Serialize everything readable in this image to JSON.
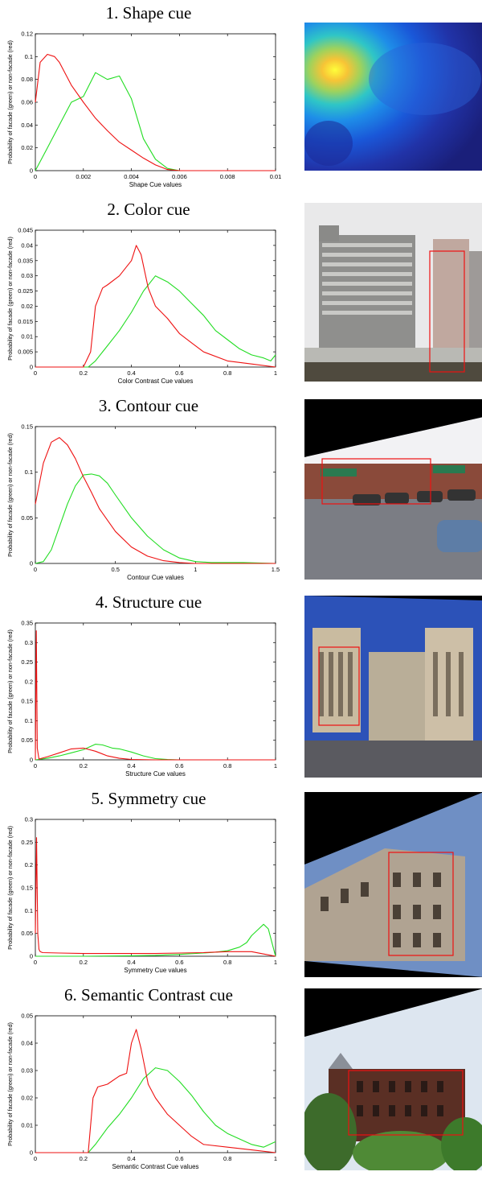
{
  "colors": {
    "facade": "#22dd22",
    "non_facade": "#ee1111"
  },
  "panels": [
    {
      "title": "1. Shape cue"
    },
    {
      "title": "2. Color cue"
    },
    {
      "title": "3. Contour cue"
    },
    {
      "title": "4. Structure cue"
    },
    {
      "title": "5. Symmetry cue"
    },
    {
      "title": "6. Semantic Contrast cue"
    }
  ],
  "thumbnails": [
    {
      "kind": "heatmap",
      "colormap": "jet"
    },
    {
      "kind": "photo",
      "scene": "building-with-box"
    },
    {
      "kind": "photo",
      "scene": "building-with-box"
    },
    {
      "kind": "photo",
      "scene": "building-with-box"
    },
    {
      "kind": "photo",
      "scene": "building-with-box"
    },
    {
      "kind": "photo",
      "scene": "building-with-box"
    }
  ],
  "chart_data": [
    {
      "type": "line",
      "xlabel": "Shape Cue values",
      "ylabel": "Probability of facade (green) or non-facade (red)",
      "xlim": [
        0,
        0.01
      ],
      "ylim": [
        0,
        0.12
      ],
      "xticks": [
        0,
        0.002,
        0.004,
        0.006,
        0.008,
        0.01
      ],
      "xtick_labels": [
        "0",
        "0.002",
        "0.004",
        "0.006",
        "0.008",
        "0.01"
      ],
      "yticks": [
        0,
        0.02,
        0.04,
        0.06,
        0.08,
        0.1,
        0.12
      ],
      "ytick_labels": [
        "0",
        "0.02",
        "0.04",
        "0.06",
        "0.08",
        "0.1",
        "0.12"
      ],
      "series": [
        {
          "color": "#22dd22",
          "x": [
            0,
            0.0005,
            0.001,
            0.0015,
            0.002,
            0.0025,
            0.003,
            0.0035,
            0.004,
            0.0045,
            0.005,
            0.0055,
            0.006,
            0.007,
            0.008,
            0.009,
            0.01
          ],
          "y": [
            0,
            0.02,
            0.04,
            0.06,
            0.065,
            0.086,
            0.08,
            0.083,
            0.063,
            0.028,
            0.01,
            0.002,
            0,
            0,
            0,
            0,
            0
          ]
        },
        {
          "color": "#ee1111",
          "x": [
            0,
            0.0002,
            0.0005,
            0.0008,
            0.001,
            0.0015,
            0.002,
            0.0025,
            0.003,
            0.0035,
            0.004,
            0.0045,
            0.005,
            0.0055,
            0.006,
            0.007,
            0.008,
            0.01
          ],
          "y": [
            0.06,
            0.095,
            0.102,
            0.1,
            0.095,
            0.075,
            0.06,
            0.046,
            0.035,
            0.025,
            0.018,
            0.011,
            0.005,
            0.001,
            0,
            0,
            0,
            0
          ]
        }
      ]
    },
    {
      "type": "line",
      "xlabel": "Color Contrast Cue values",
      "ylabel": "Probability of facade (green) or non-facade (red)",
      "xlim": [
        0,
        1
      ],
      "ylim": [
        0,
        0.045
      ],
      "xticks": [
        0,
        0.2,
        0.4,
        0.6,
        0.8,
        1
      ],
      "xtick_labels": [
        "0",
        "0.2",
        "0.4",
        "0.6",
        "0.8",
        "1"
      ],
      "yticks": [
        0,
        0.005,
        0.01,
        0.015,
        0.02,
        0.025,
        0.03,
        0.035,
        0.04,
        0.045
      ],
      "ytick_labels": [
        "0",
        "0.005",
        "0.01",
        "0.015",
        "0.02",
        "0.025",
        "0.03",
        "0.035",
        "0.04",
        "0.045"
      ],
      "series": [
        {
          "color": "#22dd22",
          "x": [
            0,
            0.22,
            0.25,
            0.3,
            0.35,
            0.4,
            0.45,
            0.5,
            0.55,
            0.6,
            0.65,
            0.7,
            0.75,
            0.8,
            0.85,
            0.9,
            0.95,
            0.98,
            1
          ],
          "y": [
            0,
            0,
            0.002,
            0.007,
            0.012,
            0.018,
            0.025,
            0.03,
            0.028,
            0.025,
            0.021,
            0.017,
            0.012,
            0.009,
            0.006,
            0.004,
            0.003,
            0.002,
            0.004
          ]
        },
        {
          "color": "#ee1111",
          "x": [
            0,
            0.2,
            0.23,
            0.25,
            0.28,
            0.3,
            0.35,
            0.38,
            0.4,
            0.42,
            0.44,
            0.47,
            0.5,
            0.55,
            0.6,
            0.65,
            0.7,
            0.8,
            0.9,
            1
          ],
          "y": [
            0,
            0,
            0.005,
            0.02,
            0.026,
            0.027,
            0.03,
            0.033,
            0.035,
            0.04,
            0.037,
            0.026,
            0.02,
            0.016,
            0.011,
            0.008,
            0.005,
            0.002,
            0.001,
            0
          ]
        }
      ]
    },
    {
      "type": "line",
      "xlabel": "Contour Cue values",
      "ylabel": "Probability of facade (green) or non-facade (red)",
      "xlim": [
        0,
        1.5
      ],
      "ylim": [
        0,
        0.15
      ],
      "xticks": [
        0,
        0.5,
        1,
        1.5
      ],
      "xtick_labels": [
        "0",
        "0.5",
        "1",
        "1.5"
      ],
      "yticks": [
        0,
        0.05,
        0.1,
        0.15
      ],
      "ytick_labels": [
        "0",
        "0.05",
        "0.1",
        "0.15"
      ],
      "series": [
        {
          "color": "#22dd22",
          "x": [
            0,
            0.05,
            0.1,
            0.15,
            0.2,
            0.25,
            0.3,
            0.35,
            0.4,
            0.45,
            0.5,
            0.6,
            0.7,
            0.8,
            0.9,
            1.0,
            1.1,
            1.3,
            1.5
          ],
          "y": [
            0,
            0.002,
            0.015,
            0.04,
            0.065,
            0.085,
            0.097,
            0.098,
            0.096,
            0.088,
            0.075,
            0.05,
            0.03,
            0.015,
            0.006,
            0.002,
            0.001,
            0.001,
            0
          ]
        },
        {
          "color": "#ee1111",
          "x": [
            0,
            0.05,
            0.1,
            0.15,
            0.2,
            0.25,
            0.3,
            0.35,
            0.4,
            0.5,
            0.6,
            0.7,
            0.8,
            0.9,
            1.0,
            1.2,
            1.5
          ],
          "y": [
            0.065,
            0.11,
            0.133,
            0.138,
            0.13,
            0.115,
            0.095,
            0.078,
            0.06,
            0.035,
            0.018,
            0.008,
            0.003,
            0.001,
            0,
            0,
            0
          ]
        }
      ]
    },
    {
      "type": "line",
      "xlabel": "Structure Cue values",
      "ylabel": "Probability of facade (green) or non-facade (red)",
      "xlim": [
        0,
        1
      ],
      "ylim": [
        0,
        0.35
      ],
      "xticks": [
        0,
        0.2,
        0.4,
        0.6,
        0.8,
        1
      ],
      "xtick_labels": [
        "0",
        "0.2",
        "0.4",
        "0.6",
        "0.8",
        "1"
      ],
      "yticks": [
        0,
        0.05,
        0.1,
        0.15,
        0.2,
        0.25,
        0.3,
        0.35
      ],
      "ytick_labels": [
        "0",
        "0.05",
        "0.1",
        "0.15",
        "0.2",
        "0.25",
        "0.3",
        "0.35"
      ],
      "series": [
        {
          "color": "#22dd22",
          "x": [
            0,
            0.05,
            0.1,
            0.15,
            0.2,
            0.25,
            0.28,
            0.32,
            0.35,
            0.4,
            0.45,
            0.5,
            0.55,
            0.6,
            1
          ],
          "y": [
            0,
            0.004,
            0.01,
            0.018,
            0.026,
            0.04,
            0.038,
            0.03,
            0.028,
            0.02,
            0.01,
            0.003,
            0.001,
            0,
            0
          ]
        },
        {
          "color": "#ee1111",
          "x": [
            0,
            0.004,
            0.008,
            0.015,
            0.05,
            0.1,
            0.15,
            0.2,
            0.25,
            0.3,
            0.35,
            0.4,
            0.5,
            1
          ],
          "y": [
            0,
            0.33,
            0.03,
            0.002,
            0.008,
            0.018,
            0.028,
            0.03,
            0.022,
            0.01,
            0.004,
            0.001,
            0,
            0
          ]
        }
      ]
    },
    {
      "type": "line",
      "xlabel": "Symmetry Cue values",
      "ylabel": "Probability of facade (green) or non-facade (red)",
      "xlim": [
        0,
        1
      ],
      "ylim": [
        0,
        0.3
      ],
      "xticks": [
        0,
        0.2,
        0.4,
        0.6,
        0.8,
        1
      ],
      "xtick_labels": [
        "0",
        "0.2",
        "0.4",
        "0.6",
        "0.8",
        "1"
      ],
      "yticks": [
        0,
        0.05,
        0.1,
        0.15,
        0.2,
        0.25,
        0.3
      ],
      "ytick_labels": [
        "0",
        "0.05",
        "0.1",
        "0.15",
        "0.2",
        "0.25",
        "0.3"
      ],
      "series": [
        {
          "color": "#22dd22",
          "x": [
            0,
            0.2,
            0.4,
            0.5,
            0.6,
            0.7,
            0.75,
            0.8,
            0.85,
            0.88,
            0.9,
            0.93,
            0.95,
            0.97,
            0.99,
            1
          ],
          "y": [
            0,
            0,
            0.001,
            0.002,
            0.004,
            0.007,
            0.009,
            0.012,
            0.02,
            0.03,
            0.045,
            0.06,
            0.07,
            0.06,
            0.02,
            0
          ]
        },
        {
          "color": "#ee1111",
          "x": [
            0,
            0.005,
            0.01,
            0.015,
            0.02,
            0.03,
            0.1,
            0.2,
            0.3,
            0.4,
            0.5,
            0.6,
            0.7,
            0.8,
            0.9,
            0.95,
            1
          ],
          "y": [
            0.05,
            0.26,
            0.05,
            0.015,
            0.01,
            0.008,
            0.007,
            0.006,
            0.006,
            0.006,
            0.006,
            0.007,
            0.008,
            0.01,
            0.01,
            0.005,
            0
          ]
        }
      ]
    },
    {
      "type": "line",
      "xlabel": "Semantic Contrast Cue values",
      "ylabel": "Probability of facade (green) or non-facade (red)",
      "xlim": [
        0,
        1
      ],
      "ylim": [
        0,
        0.05
      ],
      "xticks": [
        0,
        0.2,
        0.4,
        0.6,
        0.8,
        1
      ],
      "xtick_labels": [
        "0",
        "0.2",
        "0.4",
        "0.6",
        "0.8",
        "1"
      ],
      "yticks": [
        0,
        0.01,
        0.02,
        0.03,
        0.04,
        0.05
      ],
      "ytick_labels": [
        "0",
        "0.01",
        "0.02",
        "0.03",
        "0.04",
        "0.05"
      ],
      "series": [
        {
          "color": "#22dd22",
          "x": [
            0,
            0.22,
            0.25,
            0.3,
            0.35,
            0.4,
            0.45,
            0.5,
            0.55,
            0.6,
            0.65,
            0.7,
            0.75,
            0.8,
            0.85,
            0.9,
            0.95,
            1
          ],
          "y": [
            0,
            0,
            0.003,
            0.009,
            0.014,
            0.02,
            0.027,
            0.031,
            0.03,
            0.026,
            0.021,
            0.015,
            0.01,
            0.007,
            0.005,
            0.003,
            0.002,
            0.004
          ]
        },
        {
          "color": "#ee1111",
          "x": [
            0,
            0.22,
            0.24,
            0.26,
            0.3,
            0.35,
            0.38,
            0.4,
            0.42,
            0.44,
            0.47,
            0.5,
            0.55,
            0.6,
            0.65,
            0.7,
            0.8,
            0.9,
            1
          ],
          "y": [
            0,
            0,
            0.02,
            0.024,
            0.025,
            0.028,
            0.029,
            0.04,
            0.045,
            0.038,
            0.025,
            0.02,
            0.014,
            0.01,
            0.006,
            0.003,
            0.002,
            0.001,
            0
          ]
        }
      ]
    }
  ]
}
